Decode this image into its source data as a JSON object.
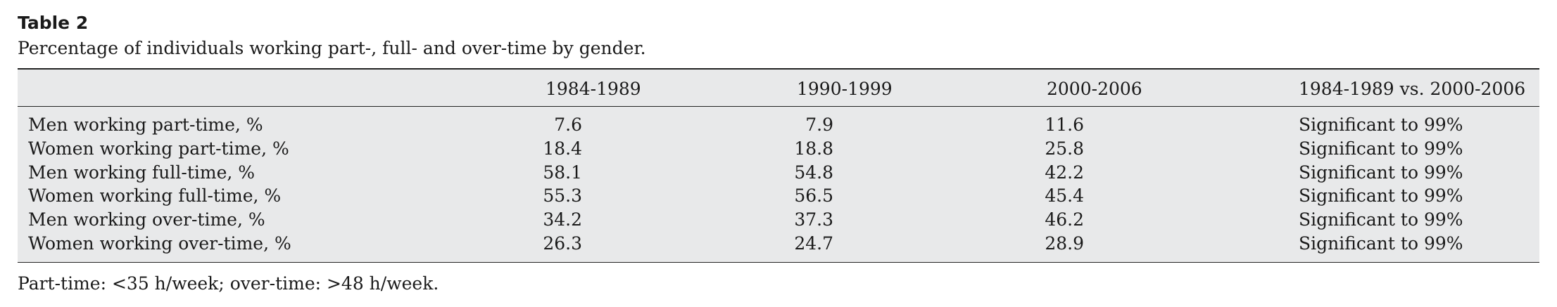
{
  "header": {
    "title": "Table 2",
    "subtitle": "Percentage of individuals working part-, full- and over-time by gender."
  },
  "table": {
    "columns": [
      "1984-1989",
      "1990-1999",
      "2000-2006",
      "1984-1989 vs. 2000-2006"
    ],
    "rows": [
      {
        "label": "Men working part-time, %",
        "values": [
          7.6,
          7.9,
          11.6
        ],
        "significance": "Significant to 99%"
      },
      {
        "label": "Women working part-time, %",
        "values": [
          18.4,
          18.8,
          25.8
        ],
        "significance": "Significant to 99%"
      },
      {
        "label": "Men working full-time, %",
        "values": [
          58.1,
          54.8,
          42.2
        ],
        "significance": "Significant to 99%"
      },
      {
        "label": "Women working full-time, %",
        "values": [
          55.3,
          56.5,
          45.4
        ],
        "significance": "Significant to 99%"
      },
      {
        "label": "Men working over-time, %",
        "values": [
          34.2,
          37.3,
          46.2
        ],
        "significance": "Significant to 99%"
      },
      {
        "label": "Women working over-time, %",
        "values": [
          26.3,
          24.7,
          28.9
        ],
        "significance": "Significant to 99%"
      }
    ]
  },
  "footnote": "Part-time: <35 h/week; over-time: >48 h/week."
}
